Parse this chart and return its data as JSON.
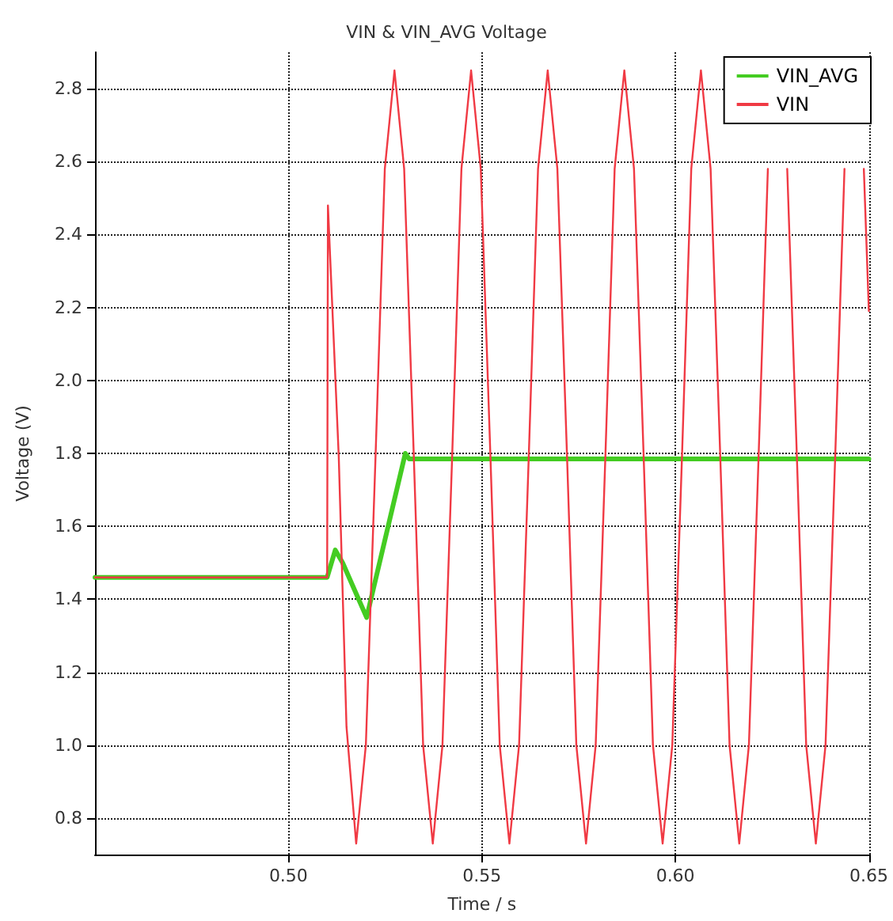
{
  "chart_data": {
    "type": "line",
    "title": "VIN & VIN_AVG Voltage",
    "xlabel": "Time / s",
    "ylabel": "Voltage (V)",
    "xlim": [
      0.45,
      0.65
    ],
    "ylim": [
      0.7,
      2.9
    ],
    "xticks": [
      {
        "value": 0.5,
        "label": "0.50"
      },
      {
        "value": 0.55,
        "label": "0.55"
      },
      {
        "value": 0.6,
        "label": "0.60"
      },
      {
        "value": 0.65,
        "label": "0.65"
      }
    ],
    "yticks": [
      {
        "value": 0.8,
        "label": "0.8"
      },
      {
        "value": 1.0,
        "label": "1.0"
      },
      {
        "value": 1.2,
        "label": "1.2"
      },
      {
        "value": 1.4,
        "label": "1.4"
      },
      {
        "value": 1.6,
        "label": "1.6"
      },
      {
        "value": 1.8,
        "label": "1.8"
      },
      {
        "value": 2.0,
        "label": "2.0"
      },
      {
        "value": 2.2,
        "label": "2.2"
      },
      {
        "value": 2.4,
        "label": "2.4"
      },
      {
        "value": 2.6,
        "label": "2.6"
      },
      {
        "value": 2.8,
        "label": "2.8"
      }
    ],
    "grid": true,
    "legend": "top right",
    "marker": "none",
    "line_style": "solid",
    "series": [
      {
        "name": "VIN_AVG",
        "color": "#44cc22",
        "x": [
          0.45,
          0.51,
          0.5121,
          0.514,
          0.5202,
          0.5302,
          0.5312,
          0.65
        ],
        "values": [
          1.46,
          1.46,
          1.535,
          1.5,
          1.35,
          1.8,
          1.785,
          1.785
        ]
      },
      {
        "name": "VIN",
        "color": "#f03a44",
        "x": [
          0.45,
          0.51,
          0.5102,
          0.513,
          0.515,
          0.5175,
          0.52,
          0.5225,
          0.5249,
          0.5274,
          0.5299,
          0.5324,
          0.5348,
          0.5373,
          0.5398,
          0.5423,
          0.5447,
          0.5472,
          0.5497,
          0.5522,
          0.5546,
          0.5571,
          0.5596,
          0.5621,
          0.5645,
          0.567,
          0.5695,
          0.572,
          0.5744,
          0.5769,
          0.5794,
          0.5819,
          0.5843,
          0.5868,
          0.5893,
          0.5918,
          0.5942,
          0.5967,
          0.5992,
          0.6017,
          0.6041,
          0.6066,
          0.6091,
          0.6116,
          0.614,
          0.6165,
          0.619,
          0.6215,
          0.6239,
          0.6264,
          0.6289,
          0.6314,
          0.6338,
          0.6363,
          0.6388,
          0.6413,
          0.6437,
          0.6462,
          0.6487,
          0.65
        ],
        "values": [
          1.46,
          1.46,
          2.48,
          1.79,
          1.05,
          0.73,
          1.0,
          1.79,
          2.58,
          2.85,
          2.58,
          1.79,
          1.0,
          0.73,
          1.0,
          1.79,
          2.58,
          2.85,
          2.58,
          1.79,
          1.0,
          0.73,
          1.0,
          1.79,
          2.58,
          2.85,
          2.58,
          1.79,
          1.0,
          0.73,
          1.0,
          1.79,
          2.58,
          2.85,
          2.58,
          1.79,
          1.0,
          0.73,
          1.0,
          1.79,
          2.58,
          2.85,
          2.58,
          1.79,
          1.0,
          0.73,
          1.0,
          1.79,
          2.58,
          null,
          2.58,
          1.79,
          1.0,
          0.73,
          1.0,
          1.79,
          2.58,
          null,
          2.58,
          2.19
        ]
      }
    ]
  }
}
